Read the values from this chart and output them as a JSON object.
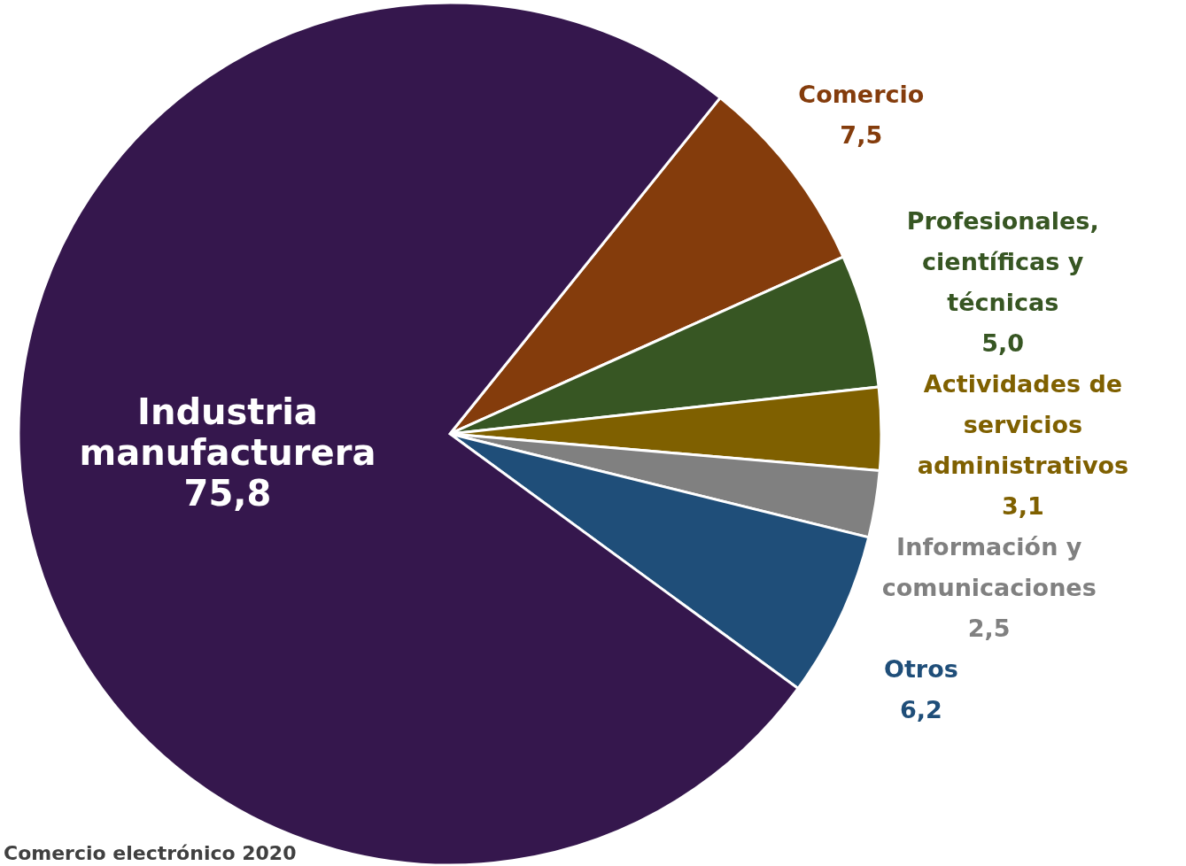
{
  "chart_data": {
    "type": "pie",
    "categories": [
      "Comercio",
      "Profesionales, científicas y técnicas",
      "Actividades de servicios administrativos",
      "Información y comunicaciones",
      "Otros",
      "Industria manufacturera"
    ],
    "values": [
      7.5,
      5.0,
      3.1,
      2.5,
      6.2,
      75.8
    ],
    "colors": [
      "#843c0c",
      "#375623",
      "#7f6000",
      "#808080",
      "#1f4e79",
      "#35174d"
    ],
    "value_labels": [
      "7,5",
      "5,0",
      "3,1",
      "2,5",
      "6,2",
      "75,8"
    ],
    "annotations": [
      "Comercio electrónico 2020"
    ]
  }
}
